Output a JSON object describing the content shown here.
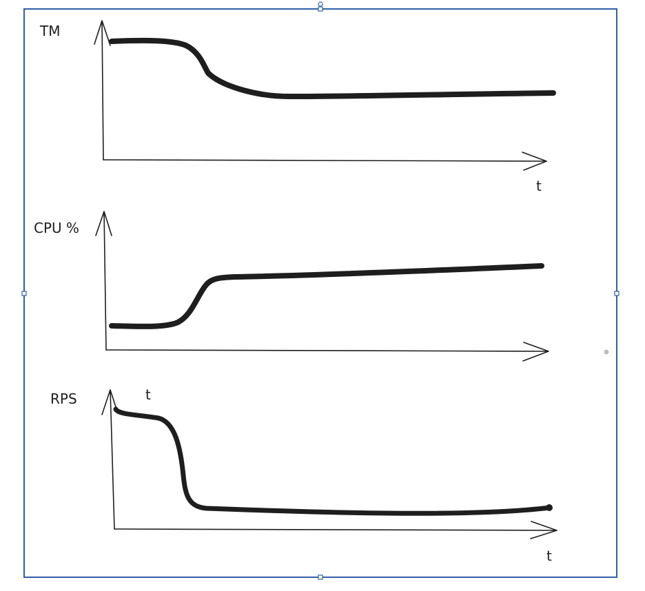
{
  "colors": {
    "ink": "#1e1e1e",
    "selection": "#2f5fa8",
    "dot": "#bdbdbd"
  },
  "charts": [
    {
      "ylabel": "TM",
      "xlabel": "t",
      "shape": "decreasing then plateau"
    },
    {
      "ylabel": "CPU %",
      "xlabel": "",
      "shape": "low then rising to plateau"
    },
    {
      "ylabel": "RPS",
      "xlabel": "t",
      "extra_label": "t",
      "shape": "high then sharp drop"
    }
  ]
}
